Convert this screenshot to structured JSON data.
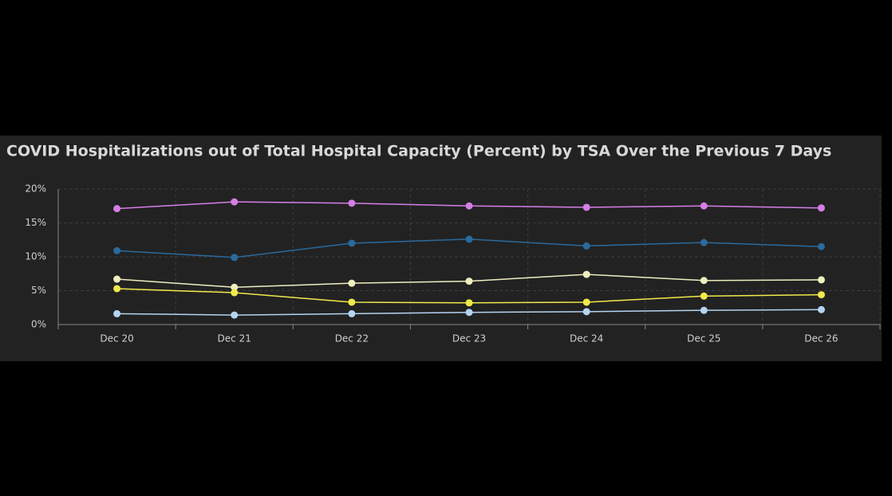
{
  "chart_data": {
    "type": "line",
    "title": "COVID Hospitalizations out of Total Hospital Capacity (Percent) by TSA Over the Previous 7 Days",
    "categories": [
      "Dec 20",
      "Dec 21",
      "Dec 22",
      "Dec 23",
      "Dec 24",
      "Dec 25",
      "Dec 26"
    ],
    "series": [
      {
        "color": "#d57ee6",
        "values": [
          17.1,
          18.1,
          17.9,
          17.5,
          17.3,
          17.5,
          17.2
        ]
      },
      {
        "color": "#2b6a9c",
        "values": [
          10.9,
          9.9,
          12.0,
          12.6,
          11.6,
          12.1,
          11.5
        ]
      },
      {
        "color": "#eeeec0",
        "values": [
          6.7,
          5.5,
          6.1,
          6.4,
          7.4,
          6.5,
          6.6
        ]
      },
      {
        "color": "#f1ea4a",
        "values": [
          5.3,
          4.7,
          3.3,
          3.2,
          3.3,
          4.2,
          4.4
        ]
      },
      {
        "color": "#b4d4f0",
        "values": [
          1.6,
          1.4,
          1.6,
          1.8,
          1.9,
          2.1,
          2.2
        ]
      }
    ],
    "ylim": [
      0,
      20
    ],
    "yticks": [
      {
        "value": 0,
        "label": "0%"
      },
      {
        "value": 5,
        "label": "5%"
      },
      {
        "value": 10,
        "label": "10%"
      },
      {
        "value": 15,
        "label": "15%"
      },
      {
        "value": 20,
        "label": "20%"
      }
    ],
    "grid": true
  }
}
